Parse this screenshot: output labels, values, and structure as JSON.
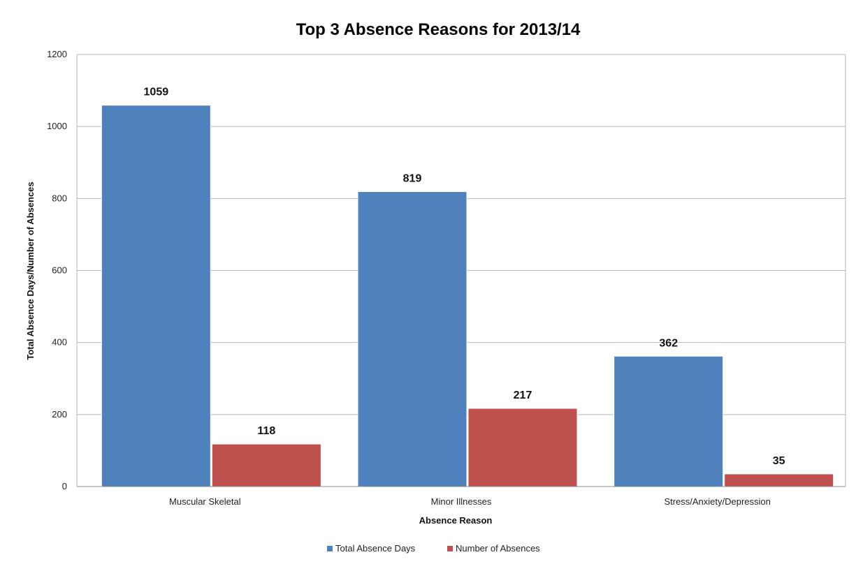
{
  "chart_data": {
    "type": "bar",
    "title": "Top 3 Absence Reasons for 2013/14",
    "xlabel": "Absence Reason",
    "ylabel": "Total Absence Days/Number of Absences",
    "categories": [
      "Muscular Skeletal",
      "Minor Illnesses",
      "Stress/Anxiety/Depression"
    ],
    "series": [
      {
        "name": "Total Absence Days",
        "values": [
          1059,
          819,
          362
        ],
        "color": "#4f81bd"
      },
      {
        "name": "Number of Absences",
        "values": [
          118,
          217,
          35
        ],
        "color": "#c0504d"
      }
    ],
    "ylim": [
      0,
      1200
    ],
    "yticks": [
      0,
      200,
      400,
      600,
      800,
      1000,
      1200
    ],
    "grid": true,
    "legend_position": "bottom",
    "data_labels": true
  }
}
